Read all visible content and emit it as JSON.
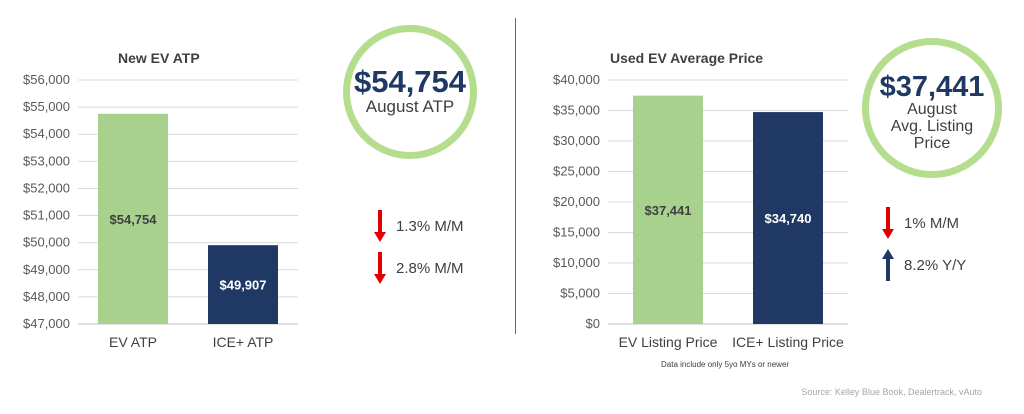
{
  "chart_data": [
    {
      "type": "bar",
      "title": "New EV ATP",
      "categories": [
        "EV ATP",
        "ICE+ ATP"
      ],
      "values": [
        54754,
        49907
      ],
      "data_labels": [
        "$54,754",
        "$49,907"
      ],
      "ylim": [
        47000,
        56000
      ],
      "yticks": [
        "$47,000",
        "$48,000",
        "$49,000",
        "$50,000",
        "$51,000",
        "$52,000",
        "$53,000",
        "$54,000",
        "$55,000",
        "$56,000"
      ],
      "colors": [
        "#a9d18e",
        "#203864"
      ],
      "label_colors": [
        "#404040",
        "#ffffff"
      ],
      "grid": true
    },
    {
      "type": "bar",
      "title": "Used EV Average Price",
      "categories": [
        "EV Listing Price",
        "ICE+ Listing Price"
      ],
      "values": [
        37441,
        34740
      ],
      "data_labels": [
        "$37,441",
        "$34,740"
      ],
      "ylim": [
        0,
        40000
      ],
      "yticks": [
        "$0",
        "$5,000",
        "$10,000",
        "$15,000",
        "$20,000",
        "$25,000",
        "$30,000",
        "$35,000",
        "$40,000"
      ],
      "colors": [
        "#a9d18e",
        "#203864"
      ],
      "label_colors": [
        "#404040",
        "#ffffff"
      ],
      "grid": true
    }
  ],
  "left_callout": {
    "value": "$54,754",
    "line1": "August ATP"
  },
  "right_callout": {
    "value": "$37,441",
    "line1": "August",
    "line2": "Avg. Listing",
    "line3": "Price"
  },
  "left_stats": [
    {
      "direction": "down",
      "text": "1.3% M/M",
      "color": "#e00000"
    },
    {
      "direction": "down",
      "text": "2.8% M/M",
      "color": "#e00000"
    }
  ],
  "right_stats": [
    {
      "direction": "down",
      "text": "1% M/M",
      "color": "#e00000"
    },
    {
      "direction": "up",
      "text": "8.2% Y/Y",
      "color": "#1f3864"
    }
  ],
  "note": "Data include only 5yo MYs or newer",
  "source": "Source: Kelley Blue Book, Dealertrack, vAuto"
}
